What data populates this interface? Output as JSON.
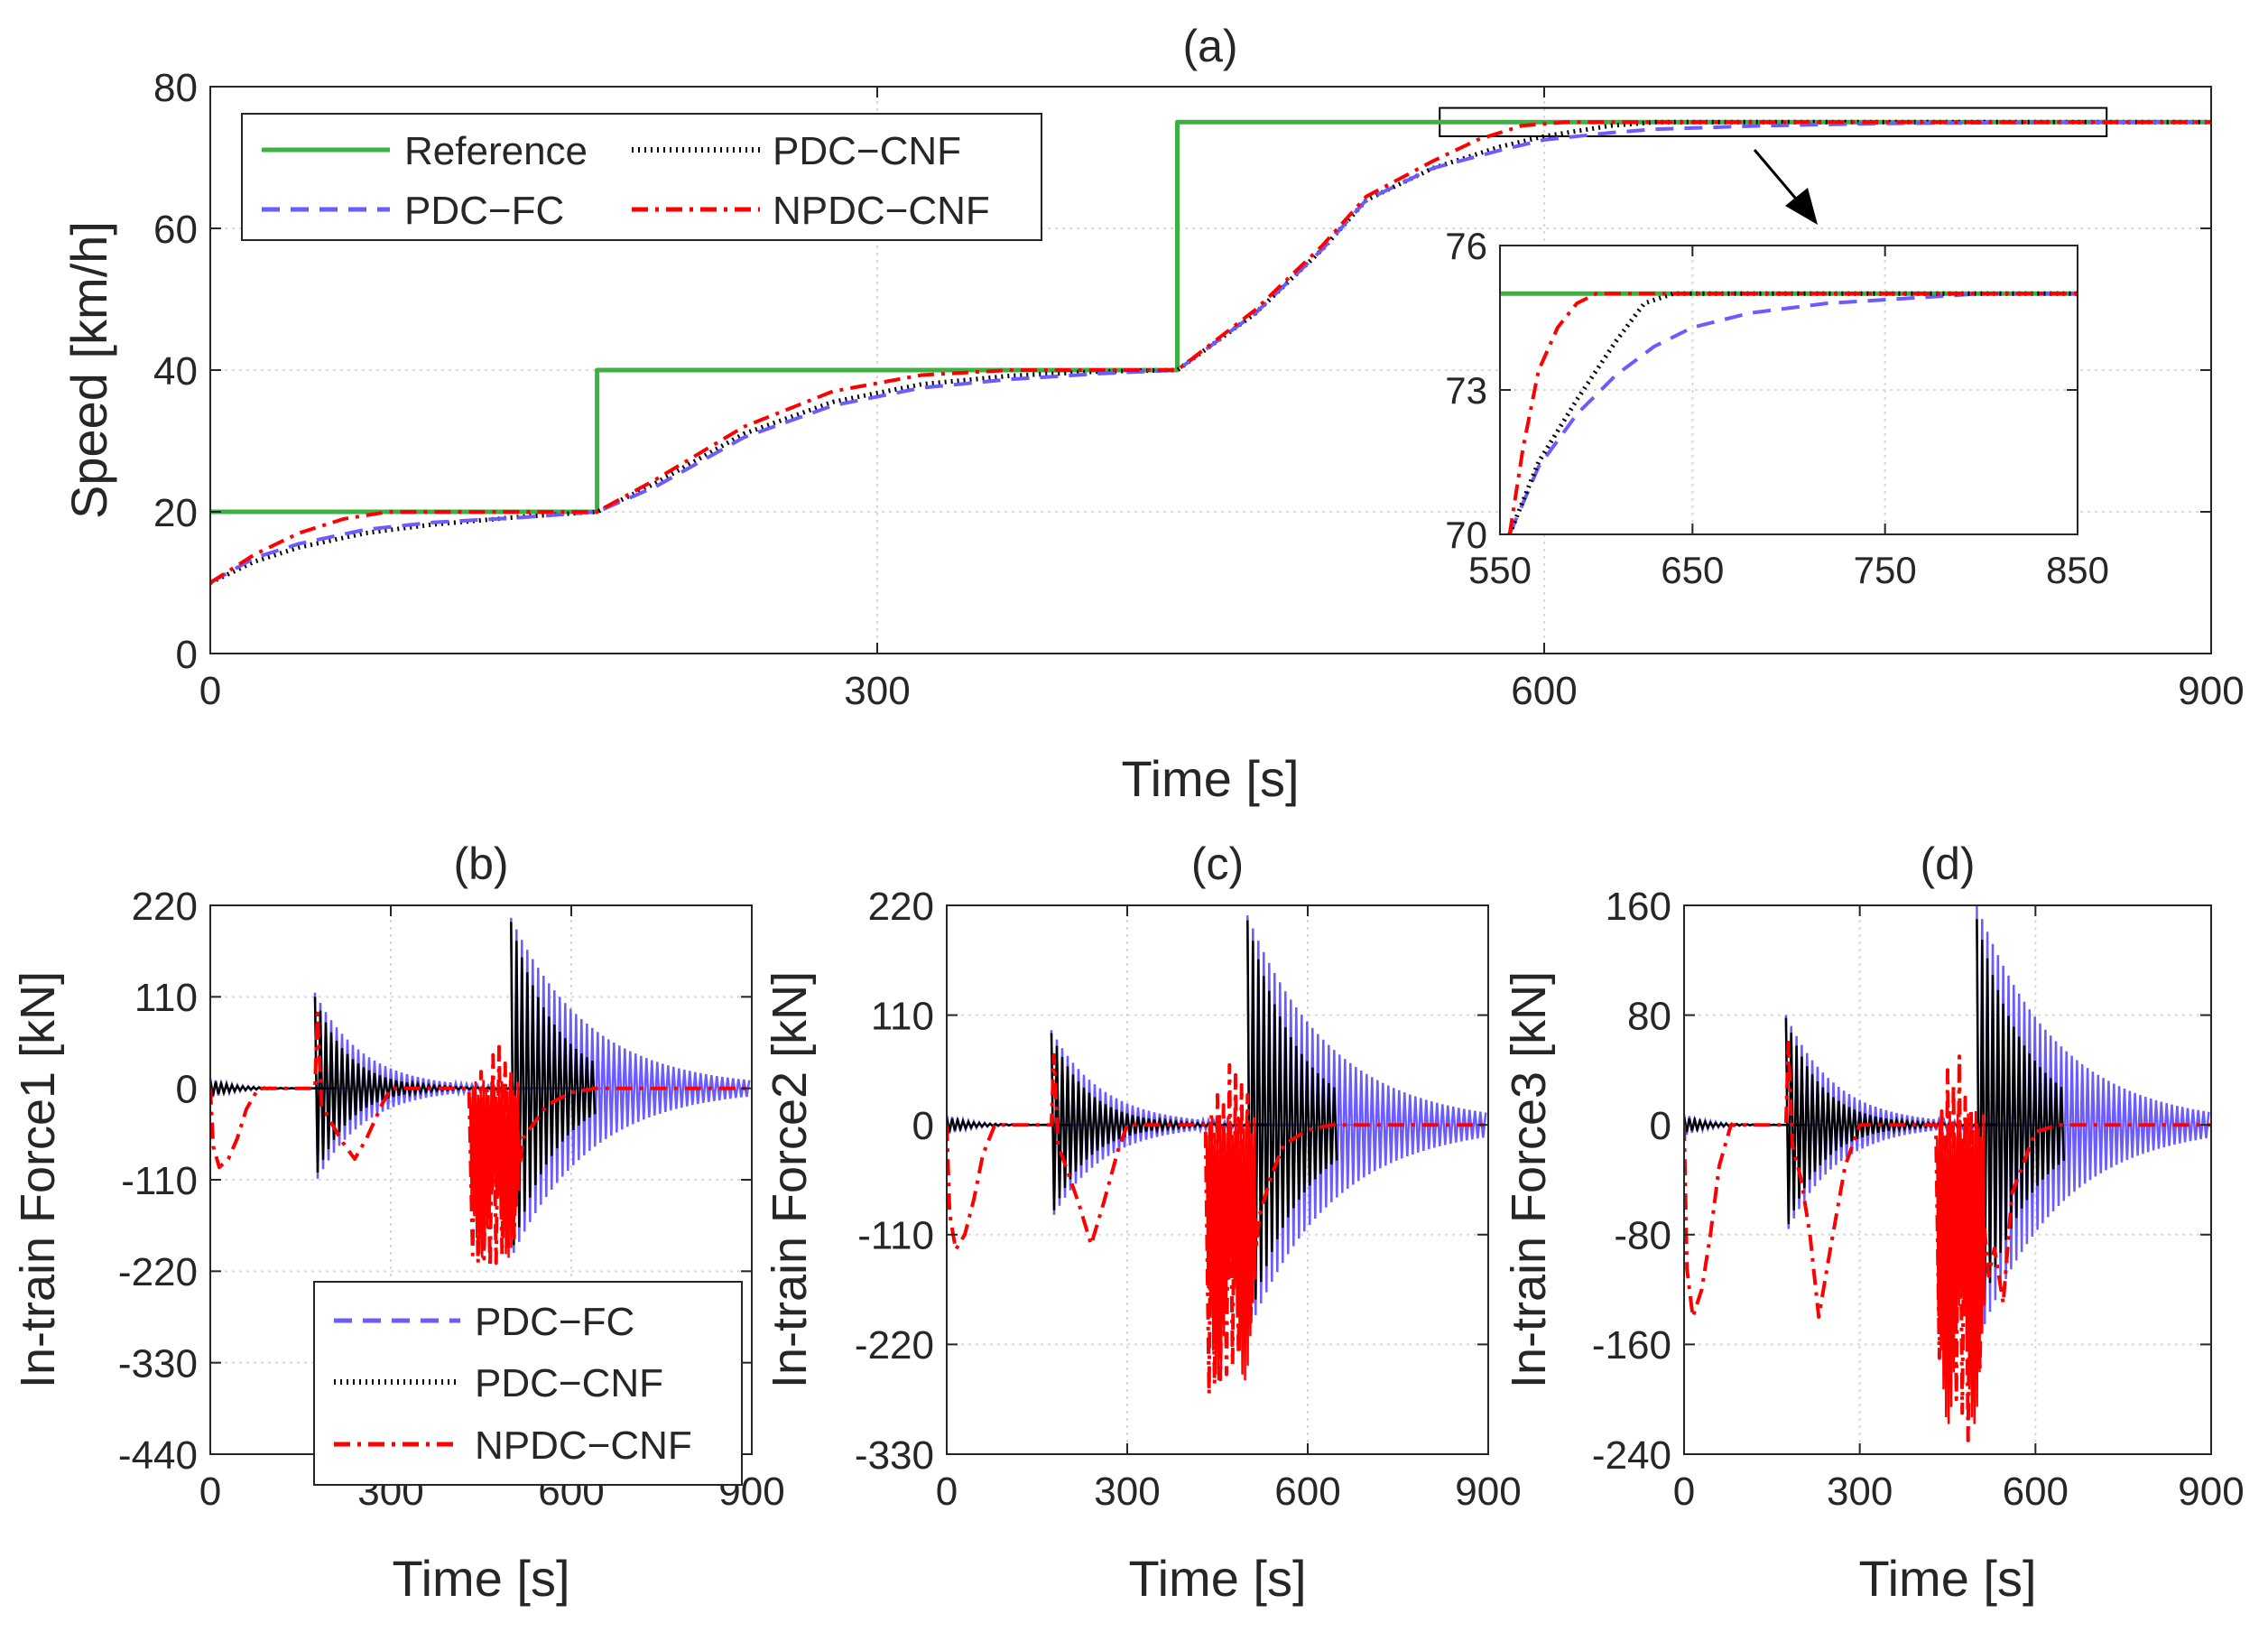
{
  "colors": {
    "reference": "#3cb043",
    "pdc_fc": "#6b5cff",
    "pdc_cnf": "#000000",
    "npdc_cnf": "#ff0000",
    "axis": "#262626",
    "grid": "#d9d9d9"
  },
  "chart_data": [
    {
      "id": "a",
      "type": "line",
      "title": "(a)",
      "xlabel": "Time [s]",
      "ylabel": "Speed [km/h]",
      "xlim": [
        0,
        900
      ],
      "ylim": [
        0,
        80
      ],
      "xticks": [
        0,
        300,
        600,
        900
      ],
      "xtick_labels": [
        "0",
        "300",
        "600",
        "900"
      ],
      "yticks": [
        0,
        20,
        40,
        60,
        80
      ],
      "ytick_labels": [
        "0",
        "20",
        "40",
        "60",
        "80"
      ],
      "grid": true,
      "legend": {
        "placement": "top-left",
        "columns": 2,
        "entries": [
          "Reference",
          "PDC−CNF",
          "PDC−FC",
          "NPDC−CNF"
        ]
      },
      "series": [
        {
          "name": "Reference",
          "key": "reference",
          "dash": "solid",
          "x": [
            0,
            174,
            174,
            435,
            435,
            900
          ],
          "y": [
            20,
            20,
            40,
            40,
            75,
            75
          ]
        },
        {
          "name": "PDC−CNF",
          "key": "pdc_cnf",
          "dash": "dot",
          "x": [
            0,
            20,
            40,
            70,
            100,
            140,
            174,
            200,
            240,
            280,
            320,
            360,
            400,
            435,
            470,
            500,
            520,
            550,
            580,
            600,
            630,
            650,
            700,
            900
          ],
          "y": [
            10,
            13,
            15,
            17,
            18.2,
            19.3,
            20,
            24,
            31,
            35.5,
            38,
            39.2,
            39.8,
            40,
            48,
            57,
            64,
            68.5,
            71.5,
            73,
            74.5,
            75,
            75,
            75
          ]
        },
        {
          "name": "PDC−FC",
          "key": "pdc_fc",
          "dash": "dash",
          "x": [
            0,
            20,
            40,
            70,
            100,
            140,
            174,
            200,
            240,
            280,
            320,
            360,
            400,
            435,
            470,
            500,
            520,
            550,
            580,
            600,
            630,
            650,
            700,
            750,
            800,
            850,
            900
          ],
          "y": [
            10,
            13.5,
            15.5,
            17.5,
            18.5,
            19.2,
            20,
            23.5,
            30.5,
            35,
            37.5,
            38.7,
            39.5,
            40,
            48,
            57,
            64,
            68.5,
            71,
            72.5,
            73.5,
            74,
            74.5,
            74.8,
            74.9,
            75,
            75
          ]
        },
        {
          "name": "NPDC−CNF",
          "key": "npdc_cnf",
          "dash": "dashdot",
          "x": [
            0,
            20,
            40,
            60,
            80,
            120,
            174,
            200,
            240,
            280,
            320,
            360,
            400,
            435,
            470,
            500,
            520,
            550,
            570,
            590,
            610,
            630,
            900
          ],
          "y": [
            10,
            14,
            17,
            19,
            20,
            20,
            20,
            24.5,
            32,
            37,
            39.3,
            40,
            40,
            40,
            48.5,
            57.5,
            64.5,
            69.5,
            72.5,
            74.5,
            75,
            75,
            75
          ]
        }
      ],
      "zoom_box": {
        "xlim": [
          553,
          853
        ],
        "ylim": [
          73,
          77
        ]
      },
      "inset": {
        "xlim": [
          550,
          850
        ],
        "ylim": [
          70,
          76
        ],
        "xticks": [
          550,
          650,
          750,
          850
        ],
        "xtick_labels": [
          "550",
          "650",
          "750",
          "850"
        ],
        "yticks": [
          70,
          73,
          76
        ],
        "ytick_labels": [
          "70",
          "73",
          "76"
        ],
        "series": [
          {
            "key": "reference",
            "dash": "solid",
            "x": [
              550,
              850
            ],
            "y": [
              75,
              75
            ]
          },
          {
            "key": "pdc_fc",
            "dash": "dash",
            "x": [
              555,
              570,
              590,
              610,
              630,
              650,
              680,
              720,
              760,
              800,
              850
            ],
            "y": [
              70,
              71.4,
              72.5,
              73.3,
              73.9,
              74.3,
              74.6,
              74.8,
              74.9,
              75,
              75
            ]
          },
          {
            "key": "pdc_cnf",
            "dash": "dot",
            "x": [
              555,
              570,
              590,
              610,
              625,
              640,
              850
            ],
            "y": [
              70,
              71.5,
              72.8,
              74.0,
              74.8,
              75,
              75
            ]
          },
          {
            "key": "npdc_cnf",
            "dash": "dashdot",
            "x": [
              555,
              562,
              570,
              580,
              590,
              600,
              610,
              850
            ],
            "y": [
              70,
              71.8,
              73.4,
              74.3,
              74.8,
              75,
              75,
              75
            ]
          }
        ]
      }
    },
    {
      "id": "b",
      "type": "line",
      "title": "(b)",
      "xlabel": "Time [s]",
      "ylabel": "In-train Force1 [kN]",
      "xlim": [
        0,
        900
      ],
      "ylim": [
        -440,
        220
      ],
      "xticks": [
        0,
        300,
        600,
        900
      ],
      "xtick_labels": [
        "0",
        "300",
        "600",
        "900"
      ],
      "yticks": [
        220,
        110,
        0,
        -110,
        -220,
        -330,
        -440
      ],
      "ytick_labels": [
        "220",
        "110",
        "0",
        "-110",
        "-220",
        "-330",
        "-440"
      ],
      "grid": true,
      "legend": {
        "placement": "bottom-right",
        "columns": 1,
        "entries": [
          "PDC−FC",
          "PDC−CNF",
          "NPDC−CNF"
        ]
      },
      "oscillations": [
        {
          "key": "pdc_fc",
          "start": 0,
          "amp": 12,
          "tau": 40,
          "period": 9
        },
        {
          "key": "pdc_fc",
          "start": 174,
          "amp": 115,
          "tau": 80,
          "period": 9
        },
        {
          "key": "pdc_fc",
          "start": 500,
          "amp": 205,
          "tau": 130,
          "period": 9
        },
        {
          "key": "pdc_cnf",
          "start": 0,
          "amp": 10,
          "tau": 35,
          "period": 9
        },
        {
          "key": "pdc_cnf",
          "start": 174,
          "amp": 110,
          "tau": 55,
          "period": 9
        },
        {
          "key": "pdc_cnf",
          "start": 500,
          "amp": 200,
          "tau": 75,
          "period": 9,
          "end": 640
        }
      ],
      "npdc_cnf": {
        "x": [
          0,
          5,
          15,
          30,
          45,
          60,
          80,
          174,
          178,
          185,
          200,
          220,
          240,
          260,
          285,
          300,
          430,
          436,
          440,
          445,
          450,
          455,
          460,
          465,
          470,
          475,
          480,
          485,
          490,
          495,
          500,
          505,
          510,
          515,
          520,
          540,
          560,
          600,
          640,
          900
        ],
        "y": [
          0,
          -70,
          -95,
          -85,
          -60,
          -25,
          0,
          0,
          90,
          -20,
          -40,
          -65,
          -85,
          -60,
          -20,
          0,
          0,
          -200,
          0,
          -210,
          20,
          -205,
          0,
          -215,
          40,
          -210,
          50,
          -200,
          30,
          -190,
          20,
          -180,
          -40,
          -90,
          -60,
          -40,
          -20,
          -5,
          0,
          0
        ]
      }
    },
    {
      "id": "c",
      "type": "line",
      "title": "(c)",
      "xlabel": "Time [s]",
      "ylabel": "In-train Force2 [kN]",
      "xlim": [
        0,
        900
      ],
      "ylim": [
        -330,
        220
      ],
      "xticks": [
        0,
        300,
        600,
        900
      ],
      "xtick_labels": [
        "0",
        "300",
        "600",
        "900"
      ],
      "yticks": [
        220,
        110,
        0,
        -110,
        -220,
        -330
      ],
      "ytick_labels": [
        "220",
        "110",
        "0",
        "-110",
        "-220",
        "-330"
      ],
      "grid": true,
      "oscillations": [
        {
          "key": "pdc_fc",
          "start": 0,
          "amp": 10,
          "tau": 40,
          "period": 9
        },
        {
          "key": "pdc_fc",
          "start": 174,
          "amp": 95,
          "tau": 85,
          "period": 9
        },
        {
          "key": "pdc_fc",
          "start": 500,
          "amp": 210,
          "tau": 140,
          "period": 9
        },
        {
          "key": "pdc_cnf",
          "start": 0,
          "amp": 8,
          "tau": 35,
          "period": 9
        },
        {
          "key": "pdc_cnf",
          "start": 174,
          "amp": 92,
          "tau": 60,
          "period": 9
        },
        {
          "key": "pdc_cnf",
          "start": 500,
          "amp": 205,
          "tau": 85,
          "period": 9,
          "end": 650
        }
      ],
      "npdc_cnf": {
        "x": [
          0,
          5,
          15,
          30,
          45,
          60,
          80,
          174,
          178,
          185,
          200,
          220,
          240,
          260,
          285,
          300,
          430,
          436,
          440,
          445,
          450,
          455,
          460,
          465,
          470,
          475,
          480,
          485,
          490,
          495,
          500,
          505,
          510,
          515,
          520,
          540,
          560,
          600,
          640,
          900
        ],
        "y": [
          0,
          -90,
          -125,
          -110,
          -75,
          -30,
          0,
          0,
          70,
          -20,
          -45,
          -80,
          -120,
          -80,
          -25,
          0,
          0,
          -270,
          10,
          -260,
          30,
          -255,
          20,
          -250,
          60,
          -240,
          50,
          -230,
          40,
          -220,
          30,
          -200,
          -60,
          -120,
          -90,
          -50,
          -20,
          -5,
          0,
          0
        ]
      }
    },
    {
      "id": "d",
      "type": "line",
      "title": "(d)",
      "xlabel": "Time [s]",
      "ylabel": "In-train Force3 [kN]",
      "xlim": [
        0,
        900
      ],
      "ylim": [
        -240,
        160
      ],
      "xticks": [
        0,
        300,
        600,
        900
      ],
      "xtick_labels": [
        "0",
        "300",
        "600",
        "900"
      ],
      "yticks": [
        160,
        80,
        0,
        -80,
        -160,
        -240
      ],
      "ytick_labels": [
        "160",
        "80",
        "0",
        "-80",
        "-160",
        "-240"
      ],
      "grid": true,
      "oscillations": [
        {
          "key": "pdc_fc",
          "start": 0,
          "amp": 8,
          "tau": 40,
          "period": 9
        },
        {
          "key": "pdc_fc",
          "start": 174,
          "amp": 80,
          "tau": 85,
          "period": 9
        },
        {
          "key": "pdc_fc",
          "start": 500,
          "amp": 160,
          "tau": 140,
          "period": 9
        },
        {
          "key": "pdc_cnf",
          "start": 0,
          "amp": 6,
          "tau": 35,
          "period": 9
        },
        {
          "key": "pdc_cnf",
          "start": 174,
          "amp": 78,
          "tau": 60,
          "period": 9
        },
        {
          "key": "pdc_cnf",
          "start": 500,
          "amp": 150,
          "tau": 85,
          "period": 9,
          "end": 650
        }
      ],
      "npdc_cnf": {
        "x": [
          0,
          5,
          15,
          30,
          45,
          60,
          80,
          174,
          178,
          185,
          200,
          215,
          230,
          250,
          275,
          300,
          430,
          436,
          440,
          445,
          450,
          455,
          460,
          465,
          470,
          475,
          480,
          485,
          490,
          495,
          500,
          505,
          510,
          520,
          530,
          545,
          560,
          600,
          640,
          900
        ],
        "y": [
          0,
          -105,
          -140,
          -120,
          -80,
          -30,
          0,
          0,
          60,
          -15,
          -40,
          -80,
          -140,
          -90,
          -30,
          0,
          0,
          -170,
          10,
          -175,
          40,
          -180,
          30,
          -200,
          50,
          -210,
          20,
          -230,
          10,
          -200,
          0,
          -180,
          -60,
          -110,
          -90,
          -130,
          -50,
          -5,
          0,
          0
        ]
      }
    }
  ]
}
